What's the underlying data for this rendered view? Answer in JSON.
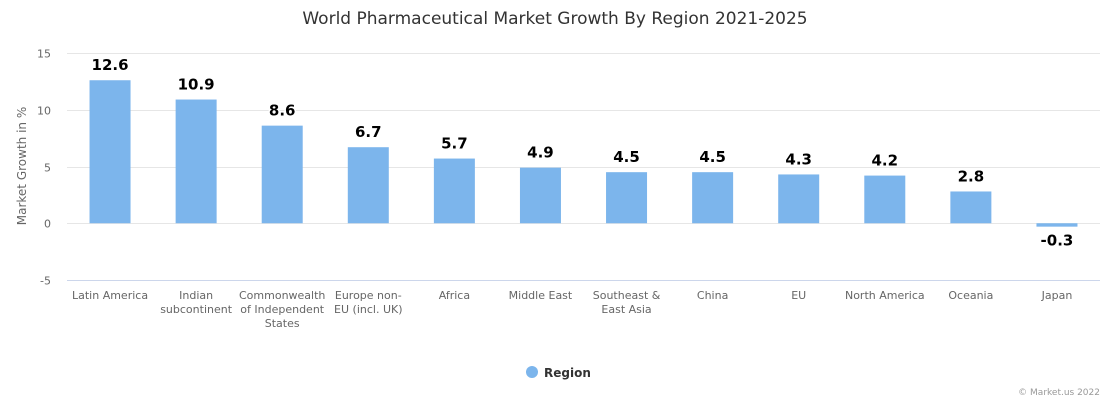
{
  "chart_data": {
    "type": "bar",
    "title": "World Pharmaceutical Market Growth By Region 2021-2025",
    "xlabel": "",
    "ylabel": "Market Growth in %",
    "ylim": [
      -5,
      15
    ],
    "yticks": [
      -5,
      0,
      5,
      10,
      15
    ],
    "grid": true,
    "legend_placement": "bottom-center",
    "categories": [
      "Latin America",
      "Indian subcontinent",
      "Commonwealth of Independent States",
      "Europe non-EU (incl. UK)",
      "Africa",
      "Middle East",
      "Southeast & East Asia",
      "China",
      "EU",
      "North America",
      "Oceania",
      "Japan"
    ],
    "series": [
      {
        "name": "Region",
        "color": "#7cb5ec",
        "values": [
          12.6,
          10.9,
          8.6,
          6.7,
          5.7,
          4.9,
          4.5,
          4.5,
          4.3,
          4.2,
          2.8,
          -0.3
        ]
      }
    ]
  },
  "credit": "© Market.us 2022"
}
